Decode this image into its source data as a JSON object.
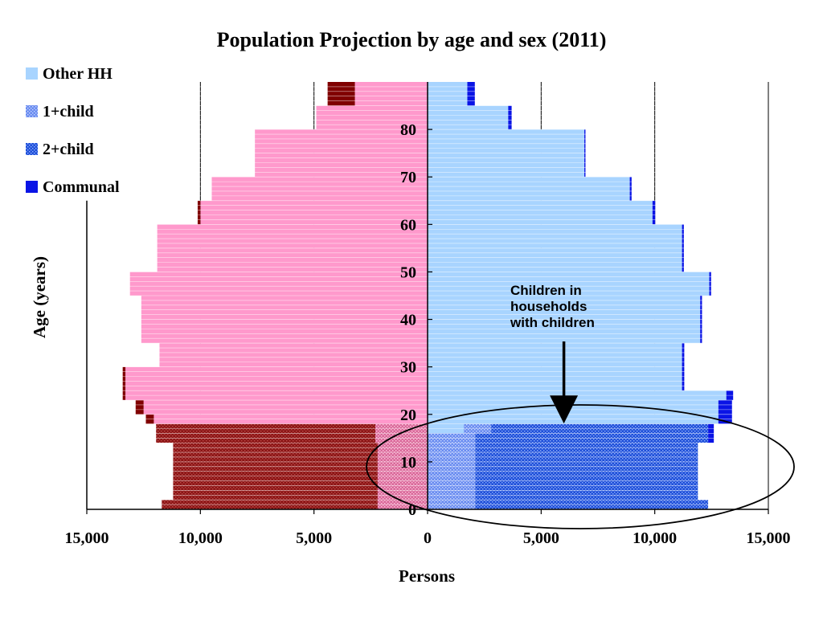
{
  "colors": {
    "female_other": "#ff99cc",
    "female_child": "#9c1c1c",
    "female_communal": "#800000",
    "male_other": "#a8d4ff",
    "male_one_child": "#6a8cf0",
    "male_two_child": "#1f4fd8",
    "male_communal": "#0a14e6",
    "row_line": "#ffffff",
    "gridline": "#000000"
  },
  "chart_data": {
    "type": "bar",
    "subtype": "population-pyramid",
    "title": "Population Projection by age and sex (2011)",
    "xlabel": "Persons",
    "ylabel": "Age (years)",
    "xlim": [
      -15000,
      15000
    ],
    "ylim": [
      0,
      90
    ],
    "x_tick_values": [
      -15000,
      -10000,
      -5000,
      0,
      5000,
      10000,
      15000
    ],
    "x_tick_labels": [
      "15,000",
      "10,000",
      "5,000",
      "0",
      "5,000",
      "10,000",
      "15,000"
    ],
    "y_tick_values": [
      0,
      10,
      20,
      30,
      40,
      50,
      60,
      70,
      80
    ],
    "y_tick_labels": [
      "0",
      "10",
      "20",
      "30",
      "40",
      "50",
      "60",
      "70",
      "80"
    ],
    "legend": {
      "placement": "top-left",
      "entries": [
        {
          "label": "Other HH",
          "color": "#a8d4ff",
          "pattern": "solid"
        },
        {
          "label": "1+child",
          "color": "#6a8cf0",
          "pattern": "dots"
        },
        {
          "label": "2+child",
          "color": "#1f4fd8",
          "pattern": "dots"
        },
        {
          "label": "Communal",
          "color": "#0a14e6",
          "pattern": "solid"
        }
      ]
    },
    "age_bands": [
      {
        "from": 0,
        "to": 2
      },
      {
        "from": 2,
        "to": 4
      },
      {
        "from": 4,
        "to": 9
      },
      {
        "from": 9,
        "to": 14
      },
      {
        "from": 14,
        "to": 16
      },
      {
        "from": 16,
        "to": 18
      },
      {
        "from": 18,
        "to": 20
      },
      {
        "from": 20,
        "to": 23
      },
      {
        "from": 23,
        "to": 25
      },
      {
        "from": 25,
        "to": 30
      },
      {
        "from": 30,
        "to": 35
      },
      {
        "from": 35,
        "to": 40
      },
      {
        "from": 40,
        "to": 45
      },
      {
        "from": 45,
        "to": 50
      },
      {
        "from": 50,
        "to": 55
      },
      {
        "from": 55,
        "to": 60
      },
      {
        "from": 60,
        "to": 65
      },
      {
        "from": 65,
        "to": 70
      },
      {
        "from": 70,
        "to": 75
      },
      {
        "from": 75,
        "to": 80
      },
      {
        "from": 80,
        "to": 85
      },
      {
        "from": 85,
        "to": 90
      }
    ],
    "female": {
      "other": [
        2200,
        2200,
        2200,
        2200,
        2300,
        2300,
        12050,
        12500,
        13300,
        13300,
        11800,
        12600,
        12600,
        13100,
        11900,
        11900,
        10000,
        9500,
        7600,
        7600,
        4900,
        3200
      ],
      "one_child": [
        2200,
        2200,
        2200,
        2200,
        2300,
        2300,
        0,
        0,
        0,
        0,
        0,
        0,
        0,
        0,
        0,
        0,
        0,
        0,
        0,
        0,
        0,
        0
      ],
      "two_child": [
        11700,
        11200,
        11200,
        11200,
        11950,
        11950,
        0,
        0,
        0,
        0,
        0,
        0,
        0,
        0,
        0,
        0,
        0,
        0,
        0,
        0,
        0,
        0
      ],
      "communal": [
        0,
        0,
        0,
        0,
        0,
        0,
        350,
        350,
        120,
        120,
        0,
        0,
        0,
        0,
        0,
        0,
        120,
        0,
        0,
        0,
        0,
        1200
      ]
    },
    "male": {
      "other": [
        0,
        0,
        0,
        0,
        0,
        1600,
        12800,
        12800,
        13150,
        11200,
        11200,
        12000,
        12000,
        12400,
        11200,
        11200,
        9900,
        8900,
        6900,
        6900,
        3550,
        1750
      ],
      "one_child": [
        2100,
        2100,
        2100,
        2100,
        2100,
        2800,
        0,
        0,
        0,
        0,
        0,
        0,
        0,
        0,
        0,
        0,
        0,
        0,
        0,
        0,
        0,
        0
      ],
      "two_child": [
        12350,
        11900,
        11900,
        11900,
        12350,
        12350,
        0,
        0,
        0,
        0,
        0,
        0,
        0,
        0,
        0,
        0,
        0,
        0,
        0,
        0,
        0,
        0
      ],
      "communal": [
        0,
        0,
        0,
        0,
        250,
        250,
        600,
        600,
        300,
        100,
        100,
        80,
        80,
        80,
        80,
        80,
        120,
        80,
        50,
        50,
        150,
        330
      ]
    },
    "annotation": {
      "text_lines": [
        "Children in",
        "households",
        "with children"
      ],
      "arrow_target": {
        "x": 6000,
        "y": 19
      },
      "ellipse_center": {
        "x": 7800,
        "y": 9
      }
    }
  }
}
